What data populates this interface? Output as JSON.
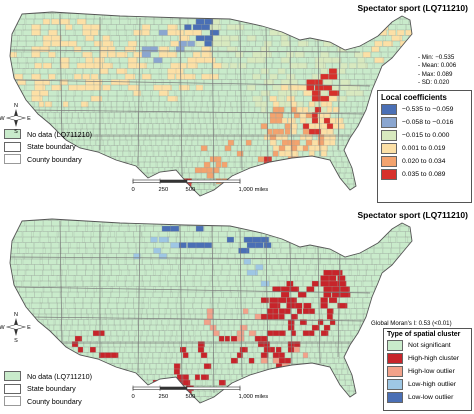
{
  "colors": {
    "nodata": "#c9ebcb",
    "neg_strong": "#4a6fb5",
    "neg_mid": "#8aa6d0",
    "neg_weak": "#d8e9bf",
    "pos_weak": "#fce0a6",
    "pos_mid": "#f3a36e",
    "pos_strong": "#d7302b",
    "not_significant": "#c9ebcb",
    "high_high": "#c7242a",
    "high_low": "#f2a28a",
    "low_high": "#9ec7e4",
    "low_low": "#4a6fb5",
    "state_boundary": "#666666",
    "county_boundary": "#999999"
  },
  "top": {
    "title": "Spectator sport (LQ711210)",
    "stats": [
      "- Min: −0.535",
      "- Mean: 0.006",
      "- Max: 0.089",
      "- SD: 0.020"
    ],
    "legend_title": "Local coefficients",
    "legend_items": [
      {
        "label": "−0.535 to −0.059",
        "color": "#4a6fb5"
      },
      {
        "label": "−0.058 to −0.016",
        "color": "#8aa6d0"
      },
      {
        "label": "−0.015 to 0.000",
        "color": "#d8e9bf"
      },
      {
        "label": "0.001 to 0.019",
        "color": "#fce0a6"
      },
      {
        "label": "0.020 to 0.034",
        "color": "#f3a36e"
      },
      {
        "label": "0.035 to 0.089",
        "color": "#d7302b"
      }
    ]
  },
  "bottom": {
    "title": "Spectator sport (LQ711210)",
    "moran": "Global Moran's I: 0.53 (<0.01)",
    "legend_title": "Type of spatial cluster",
    "legend_items": [
      {
        "label": "Not significant",
        "color": "#c9ebcb"
      },
      {
        "label": "High-high cluster",
        "color": "#c7242a"
      },
      {
        "label": "High-low outlier",
        "color": "#f2a28a"
      },
      {
        "label": "Low-high outlier",
        "color": "#9ec7e4"
      },
      {
        "label": "Low-low outlier",
        "color": "#4a6fb5"
      }
    ]
  },
  "base_legend": [
    {
      "label": "No data (LQ711210)",
      "kind": "fill"
    },
    {
      "label": "State boundary",
      "kind": "state"
    },
    {
      "label": "County boundary",
      "kind": "county"
    }
  ],
  "scale": {
    "ticks": [
      "0",
      "250",
      "500",
      "1,000 miles"
    ]
  },
  "north_arrow": {
    "N": "N",
    "S": "S",
    "E": "E",
    "W": "W"
  }
}
